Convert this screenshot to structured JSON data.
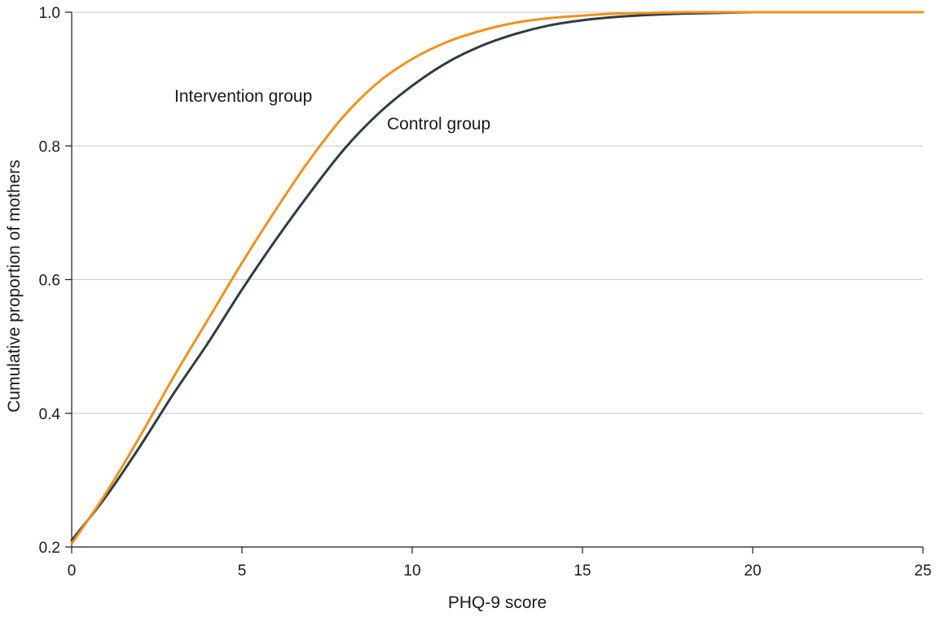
{
  "chart_data": {
    "type": "line",
    "xlabel": "PHQ-9 score",
    "ylabel": "Cumulative proportion of mothers",
    "xlim": [
      0,
      25
    ],
    "ylim": [
      0.2,
      1.0
    ],
    "xticks": [
      0,
      5,
      10,
      15,
      20,
      25
    ],
    "yticks": [
      0.2,
      0.4,
      0.6,
      0.8,
      1.0
    ],
    "ytick_labels": [
      "0.2",
      "0.4",
      "0.6",
      "0.8",
      "1.0"
    ],
    "grid": "horizontal",
    "legend": "inline labels",
    "series": [
      {
        "name": "Intervention group",
        "color": "#f0901e",
        "x": [
          0,
          1,
          2,
          3,
          4,
          5,
          6,
          7,
          8,
          9,
          10,
          11,
          12,
          13,
          14,
          15,
          16,
          17,
          18,
          19,
          20,
          21,
          22,
          23,
          24,
          25
        ],
        "y": [
          0.205,
          0.28,
          0.365,
          0.455,
          0.54,
          0.625,
          0.705,
          0.78,
          0.845,
          0.895,
          0.93,
          0.955,
          0.972,
          0.984,
          0.991,
          0.995,
          0.998,
          0.999,
          1.0,
          1.0,
          1.0,
          1.0,
          1.0,
          1.0,
          1.0,
          1.0
        ]
      },
      {
        "name": "Control group",
        "color": "#2c3e3f",
        "x": [
          0,
          1,
          2,
          3,
          4,
          5,
          6,
          7,
          8,
          9,
          10,
          11,
          12,
          13,
          14,
          15,
          16,
          17,
          18,
          19,
          20,
          21,
          22,
          23,
          24,
          25
        ],
        "y": [
          0.21,
          0.275,
          0.35,
          0.43,
          0.505,
          0.585,
          0.66,
          0.73,
          0.795,
          0.848,
          0.89,
          0.924,
          0.949,
          0.967,
          0.98,
          0.988,
          0.993,
          0.996,
          0.998,
          0.999,
          1.0,
          1.0,
          1.0,
          1.0,
          1.0,
          1.0
        ]
      }
    ]
  }
}
